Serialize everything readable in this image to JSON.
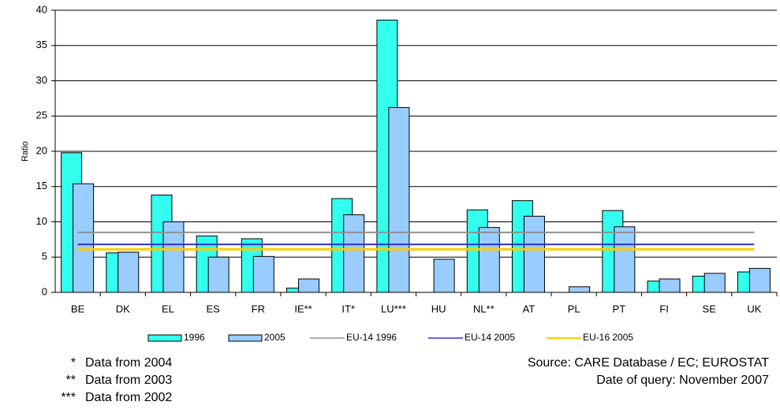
{
  "chart_data": {
    "type": "bar",
    "y_label": "Ratio",
    "categories": [
      "BE",
      "DK",
      "EL",
      "ES",
      "FR",
      "IE**",
      "IT*",
      "LU***",
      "HU",
      "NL**",
      "AT",
      "PL",
      "PT",
      "FI",
      "SE",
      "UK"
    ],
    "series": [
      {
        "name": "1996",
        "color": "#33ffee",
        "values": [
          19.8,
          5.6,
          13.8,
          8.0,
          7.6,
          0.6,
          13.3,
          38.6,
          null,
          11.7,
          13.0,
          null,
          11.6,
          1.6,
          2.3,
          2.9
        ]
      },
      {
        "name": "2005",
        "color": "#99ccff",
        "values": [
          15.4,
          5.7,
          10.0,
          5.0,
          5.1,
          1.9,
          11.0,
          26.2,
          4.7,
          9.2,
          10.8,
          0.8,
          9.3,
          1.9,
          2.7,
          3.4
        ]
      }
    ],
    "reference_lines": [
      {
        "name": "EU-14 1996",
        "color": "#909090",
        "value": 8.5
      },
      {
        "name": "EU-14  2005",
        "color": "#3333cc",
        "value": 6.8
      },
      {
        "name": "EU-16  2005",
        "color": "#ffcc00",
        "value": 6.1
      }
    ],
    "ylim": [
      0,
      40
    ],
    "yticks": [
      0,
      5,
      10,
      15,
      20,
      25,
      30,
      35,
      40
    ],
    "grid": true,
    "legend": "bottom",
    "footnotes": [
      {
        "mark": "*",
        "text": "Data from 2004"
      },
      {
        "mark": "**",
        "text": "Data from 2003"
      },
      {
        "mark": "***",
        "text": "Data from 2002"
      }
    ],
    "source": "Source: CARE Database / EC; EUROSTAT",
    "query_date": "Date of query: November 2007"
  }
}
